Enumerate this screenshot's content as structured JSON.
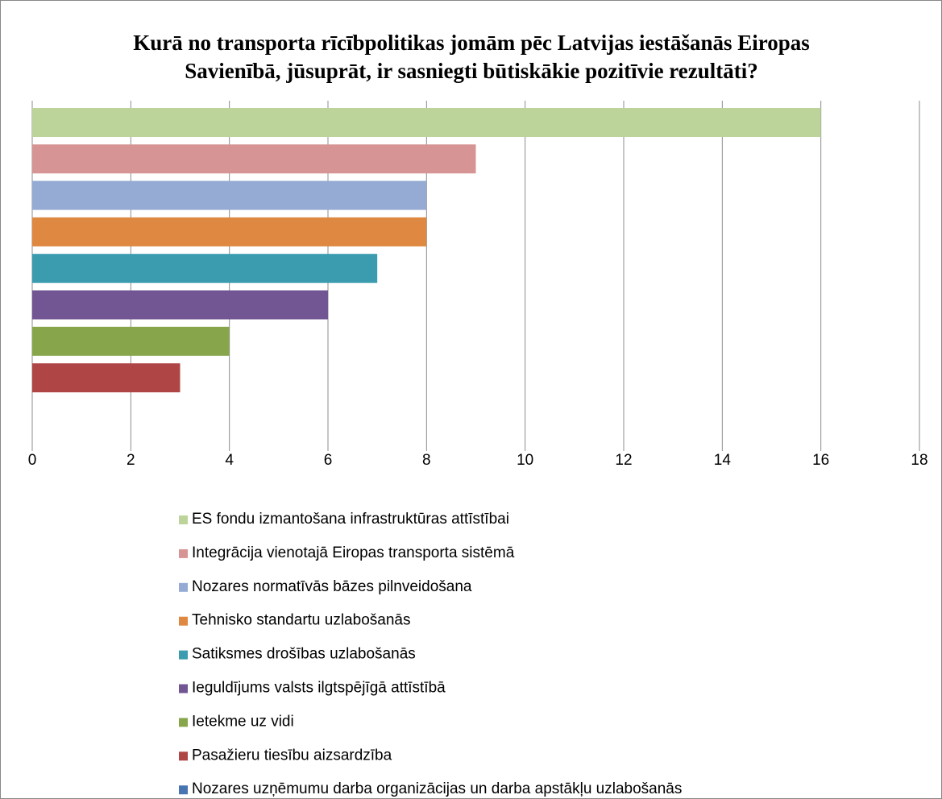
{
  "chart_data": {
    "type": "bar",
    "orientation": "horizontal",
    "title": "Kurā no transporta rīcībpolitikas jomām pēc Latvijas iestāšanās Eiropas Savienībā, jūsuprāt, ir sasniegti būtiskākie pozitīvie rezultāti?",
    "categories": [
      null
    ],
    "series": [
      {
        "name": "ES fondu izmantošana infrastruktūras attīstībai",
        "color": "#bcd39a",
        "values": [
          16
        ]
      },
      {
        "name": "Integrācija vienotajā Eiropas transporta sistēmā",
        "color": "#d69594",
        "values": [
          9
        ]
      },
      {
        "name": "Nozares normatīvās bāzes pilnveidošana",
        "color": "#95abd3",
        "values": [
          8
        ]
      },
      {
        "name": "Tehnisko standartu uzlabošanās",
        "color": "#df8841",
        "values": [
          8
        ]
      },
      {
        "name": "Satiksmes drošības uzlabošanās",
        "color": "#3a9cae",
        "values": [
          7
        ]
      },
      {
        "name": "Ieguldījums valsts ilgtspējīgā attīstībā",
        "color": "#725593",
        "values": [
          6
        ]
      },
      {
        "name": "Ietekme uz vidi",
        "color": "#87a64c",
        "values": [
          4
        ]
      },
      {
        "name": "Pasažieru tiesību aizsardzība",
        "color": "#b04546",
        "values": [
          3
        ]
      },
      {
        "name": "Nozares uzņēmumu darba organizācijas un darba apstākļu uzlabošanās",
        "color": "#4874b2",
        "values": [
          0
        ]
      }
    ],
    "xlim": [
      0,
      18
    ],
    "xticks": [
      0,
      2,
      4,
      6,
      8,
      10,
      12,
      14,
      16,
      18
    ],
    "grid": true,
    "legend": "bottom"
  }
}
